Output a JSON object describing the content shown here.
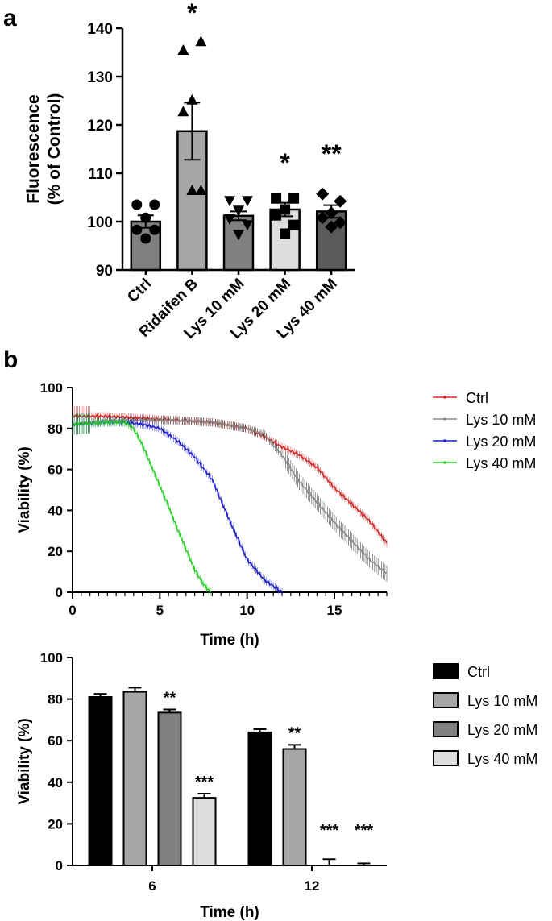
{
  "panel_labels": {
    "a": "a",
    "b": "b"
  },
  "chart_data": [
    {
      "type": "bar",
      "id": "panel-a",
      "title": "",
      "xlabel": "",
      "ylabel_line1": "Fluorescence",
      "ylabel_line2": "(% of Control)",
      "ylim": [
        90,
        140
      ],
      "yticks": [
        "90",
        "100",
        "110",
        "120",
        "130",
        "140"
      ],
      "categories": [
        "Ctrl",
        "Ridaifen B",
        "Lys 10 mM",
        "Lys 20 mM",
        "Lys 40 mM"
      ],
      "values": [
        100,
        118.7,
        101.2,
        102.5,
        102.1
      ],
      "errors": [
        1.3,
        5.9,
        0.9,
        1.4,
        1.3
      ],
      "colors": [
        "#7f7f7f",
        "#a6a6a6",
        "#808080",
        "#dddddd",
        "#5a5a5a"
      ],
      "points": [
        [
          103.5,
          103.5,
          100.8,
          98.3,
          98.3,
          96.5
        ],
        [
          135.5,
          137.3,
          125.2,
          122.8,
          106.5,
          106.5
        ],
        [
          104.3,
          104.3,
          102.3,
          100.5,
          99.3,
          97.3
        ],
        [
          104.8,
          104.8,
          102.5,
          101.3,
          99.3,
          97.5
        ],
        [
          105.7,
          104.2,
          101.8,
          100.8,
          99.8,
          98.9
        ]
      ],
      "markers": [
        "circle",
        "triangle-up",
        "triangle-down",
        "square",
        "diamond"
      ],
      "significance": [
        "",
        "*",
        "",
        "*",
        "**"
      ]
    },
    {
      "type": "line",
      "id": "panel-b-top",
      "xlabel": "Time (h)",
      "ylabel": "Viability (%)",
      "xlim": [
        0,
        18
      ],
      "ylim": [
        0,
        100
      ],
      "xticks": [
        "0",
        "5",
        "10",
        "15"
      ],
      "yticks": [
        "0",
        "20",
        "40",
        "60",
        "80",
        "100"
      ],
      "series": [
        {
          "name": "Ctrl",
          "color": "#d62728",
          "x": [
            0,
            2,
            4,
            6,
            8,
            10,
            11,
            12,
            13,
            14,
            15,
            16,
            17,
            18
          ],
          "y": [
            86,
            86,
            85,
            84,
            83,
            80,
            76,
            71,
            67,
            61,
            51,
            43,
            35,
            24
          ]
        },
        {
          "name": "Lys 10 mM",
          "color": "#8c8c8c",
          "x": [
            0,
            2,
            4,
            6,
            8,
            10,
            11,
            12,
            13,
            14,
            15,
            16,
            17,
            18
          ],
          "y": [
            82,
            84,
            84,
            84,
            83,
            80,
            77,
            67,
            54,
            44,
            34,
            25,
            16,
            9
          ]
        },
        {
          "name": "Lys 20 mM",
          "color": "#1f1fcc",
          "x": [
            0,
            2,
            3,
            4,
            5,
            6,
            7,
            8,
            9,
            10,
            11,
            11.5,
            12
          ],
          "y": [
            82,
            83,
            83,
            82,
            80,
            74,
            66,
            55,
            35,
            16,
            6,
            3,
            0
          ]
        },
        {
          "name": "Lys 40 mM",
          "color": "#22cc22",
          "x": [
            0,
            2,
            3,
            3.5,
            4,
            4.5,
            5,
            5.5,
            6,
            6.5,
            7,
            7.5,
            7.9
          ],
          "y": [
            82,
            83,
            83,
            80,
            72,
            62,
            52,
            42,
            31,
            21,
            11,
            4,
            0
          ]
        }
      ]
    },
    {
      "type": "bar",
      "id": "panel-b-bottom",
      "xlabel": "Time (h)",
      "ylabel": "Viability (%)",
      "ylim": [
        0,
        100
      ],
      "yticks": [
        "0",
        "20",
        "40",
        "60",
        "80",
        "100"
      ],
      "categories": [
        "6",
        "12"
      ],
      "series": [
        {
          "name": "Ctrl",
          "color": "#000000",
          "values": [
            81,
            64
          ],
          "errors": [
            1.5,
            1.5
          ]
        },
        {
          "name": "Lys 10 mM",
          "color": "#a6a6a6",
          "values": [
            83.5,
            56
          ],
          "errors": [
            2,
            2
          ]
        },
        {
          "name": "Lys 20 mM",
          "color": "#808080",
          "values": [
            73.5,
            0
          ],
          "errors": [
            1.5,
            3
          ]
        },
        {
          "name": "Lys 40 mM",
          "color": "#dddddd",
          "values": [
            32.5,
            0
          ],
          "errors": [
            2,
            1
          ]
        }
      ],
      "significance": [
        [
          "",
          "",
          "**",
          "***"
        ],
        [
          "",
          "**",
          "***",
          "***"
        ]
      ]
    }
  ]
}
